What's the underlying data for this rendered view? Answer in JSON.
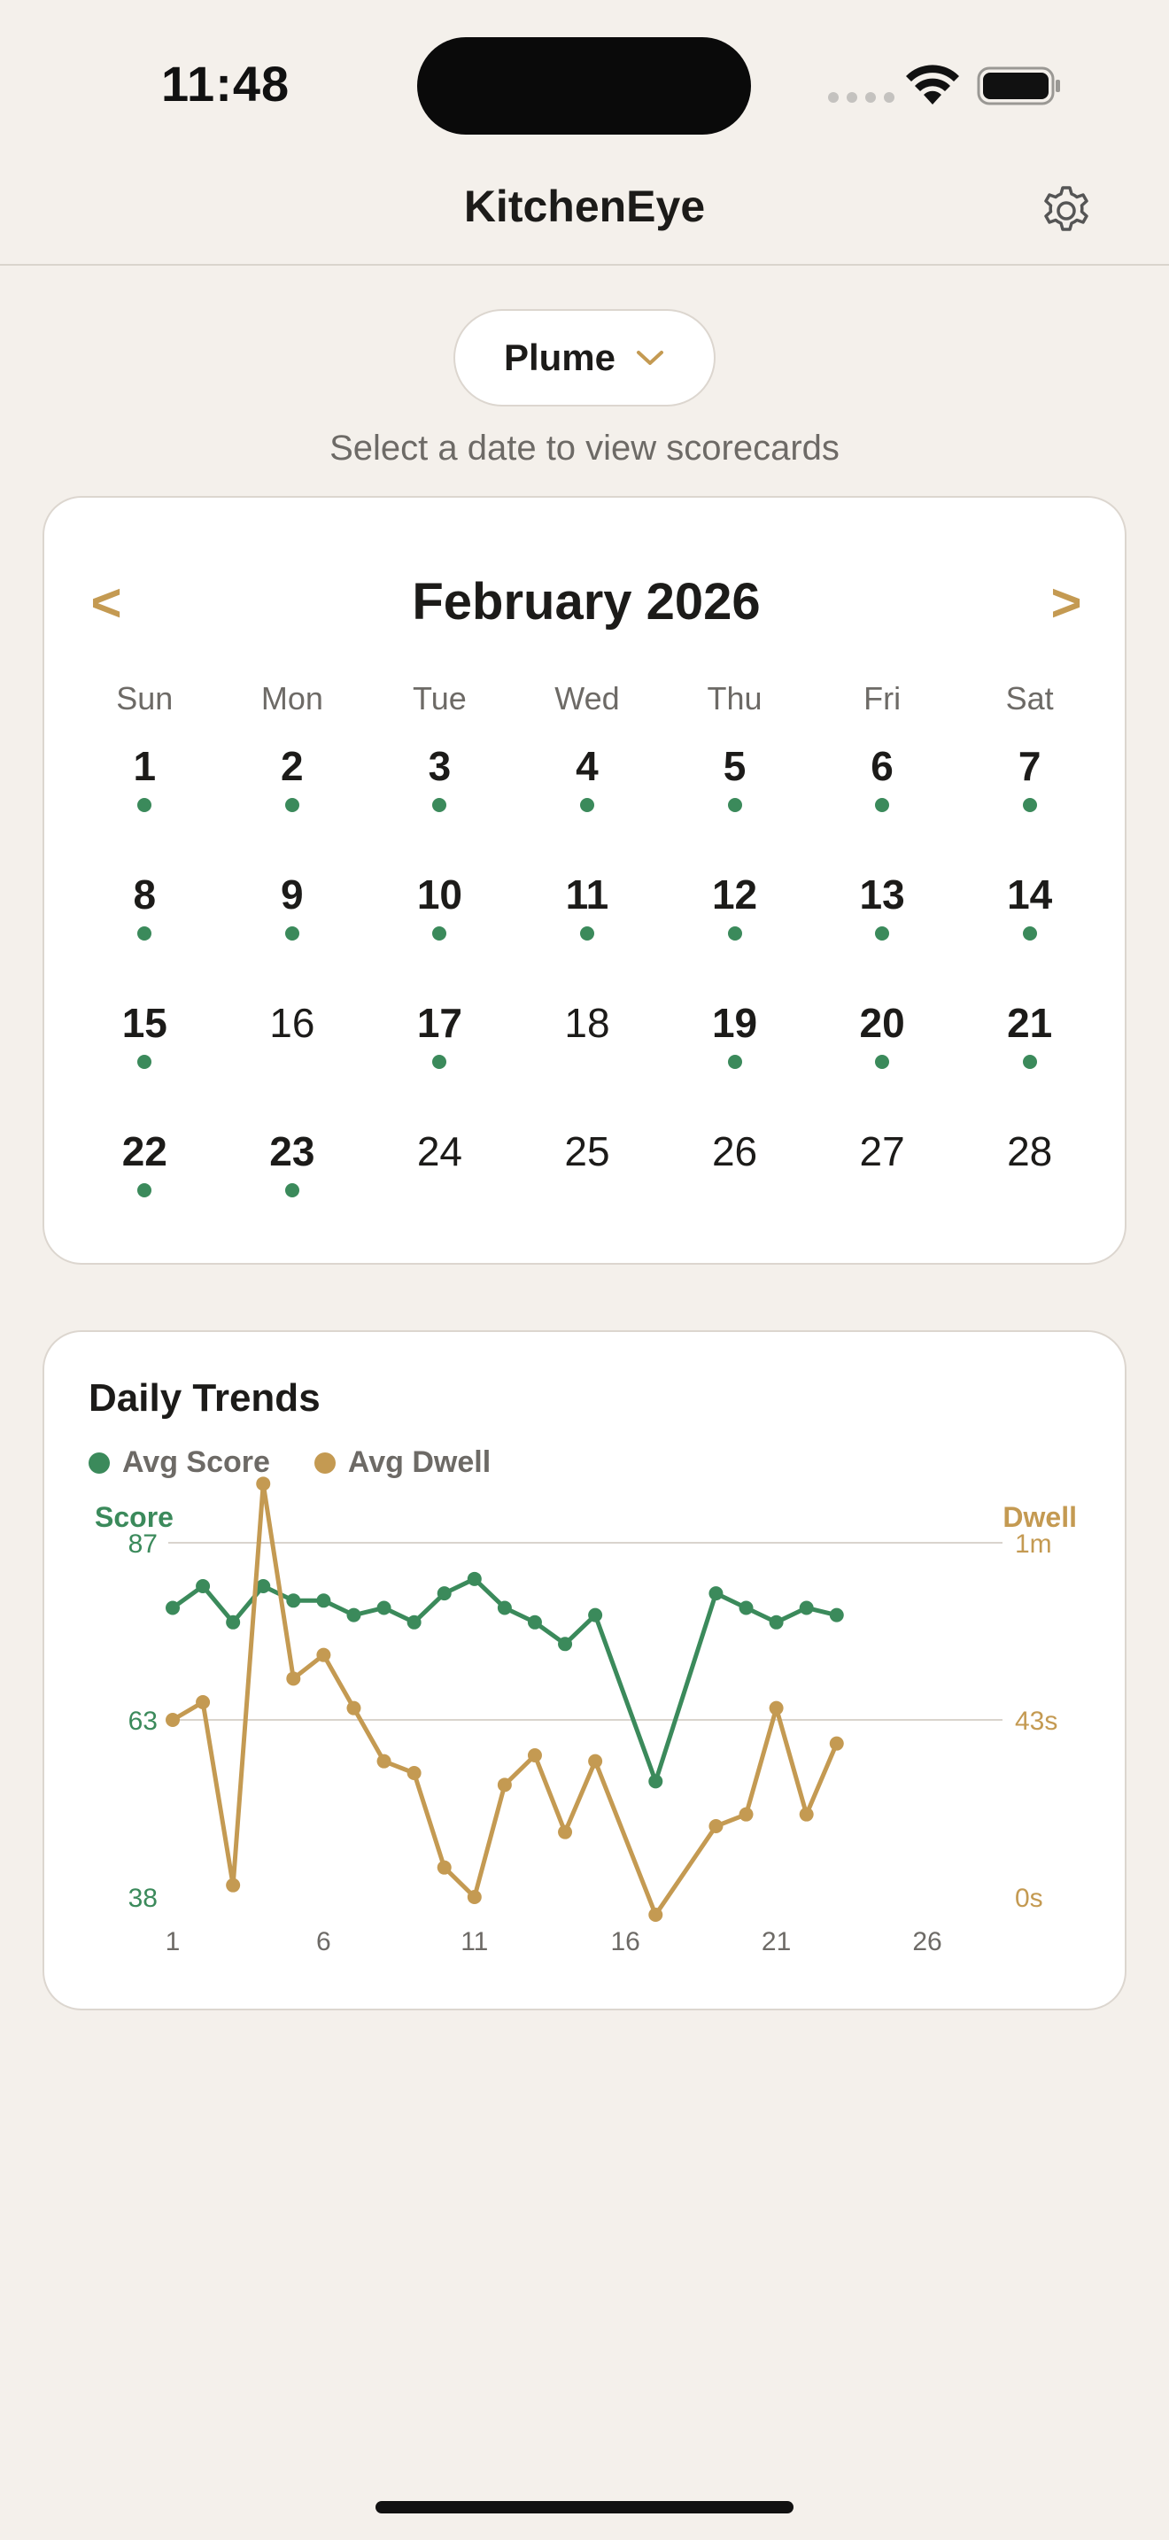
{
  "status": {
    "time": "11:48"
  },
  "header": {
    "title": "KitchenEye",
    "settings_icon": "gear-icon"
  },
  "picker": {
    "location": "Plume",
    "icon": "chevron-down-icon"
  },
  "hint": "Select a date to view scorecards",
  "calendar": {
    "month_label": "February 2026",
    "prev_label": "<",
    "next_label": ">",
    "weekdays": [
      "Sun",
      "Mon",
      "Tue",
      "Wed",
      "Thu",
      "Fri",
      "Sat"
    ],
    "days": [
      {
        "n": "1",
        "has_data": true
      },
      {
        "n": "2",
        "has_data": true
      },
      {
        "n": "3",
        "has_data": true
      },
      {
        "n": "4",
        "has_data": true
      },
      {
        "n": "5",
        "has_data": true
      },
      {
        "n": "6",
        "has_data": true
      },
      {
        "n": "7",
        "has_data": true
      },
      {
        "n": "8",
        "has_data": true
      },
      {
        "n": "9",
        "has_data": true
      },
      {
        "n": "10",
        "has_data": true
      },
      {
        "n": "11",
        "has_data": true
      },
      {
        "n": "12",
        "has_data": true
      },
      {
        "n": "13",
        "has_data": true
      },
      {
        "n": "14",
        "has_data": true
      },
      {
        "n": "15",
        "has_data": true
      },
      {
        "n": "16",
        "has_data": false
      },
      {
        "n": "17",
        "has_data": true
      },
      {
        "n": "18",
        "has_data": false
      },
      {
        "n": "19",
        "has_data": true
      },
      {
        "n": "20",
        "has_data": true
      },
      {
        "n": "21",
        "has_data": true
      },
      {
        "n": "22",
        "has_data": true
      },
      {
        "n": "23",
        "has_data": true
      },
      {
        "n": "24",
        "has_data": false
      },
      {
        "n": "25",
        "has_data": false
      },
      {
        "n": "26",
        "has_data": false
      },
      {
        "n": "27",
        "has_data": false
      },
      {
        "n": "28",
        "has_data": false
      }
    ],
    "dot_color": "#3b8a5b"
  },
  "trends": {
    "title": "Daily Trends",
    "legend": [
      {
        "label": "Avg Score",
        "color": "#3b8a5b"
      },
      {
        "label": "Avg Dwell",
        "color": "#c49a52"
      }
    ]
  },
  "chart_data": {
    "type": "line",
    "left_axis_title": "Score",
    "right_axis_title": "Dwell",
    "left_ticks": [
      "87",
      "63",
      "38"
    ],
    "left_range": [
      38,
      87
    ],
    "right_ticks": [
      "1m",
      "43s",
      "0s"
    ],
    "right_range_seconds": [
      0,
      60
    ],
    "x_ticks": [
      "1",
      "6",
      "11",
      "16",
      "21",
      "26"
    ],
    "x_range": [
      1,
      26
    ],
    "grid": true,
    "series": [
      {
        "name": "Avg Score",
        "axis": "left",
        "color": "#3b8a5b",
        "points": [
          [
            1,
            78
          ],
          [
            2,
            81
          ],
          [
            3,
            76
          ],
          [
            4,
            81
          ],
          [
            5,
            79
          ],
          [
            6,
            79
          ],
          [
            7,
            77
          ],
          [
            8,
            78
          ],
          [
            9,
            76
          ],
          [
            10,
            80
          ],
          [
            11,
            82
          ],
          [
            12,
            78
          ],
          [
            13,
            76
          ],
          [
            14,
            73
          ],
          [
            15,
            77
          ],
          [
            17,
            54
          ],
          [
            19,
            80
          ],
          [
            20,
            78
          ],
          [
            21,
            76
          ],
          [
            22,
            78
          ],
          [
            23,
            77
          ]
        ]
      },
      {
        "name": "Avg Dwell",
        "axis": "right",
        "color": "#c49a52",
        "points": [
          [
            1,
            30
          ],
          [
            2,
            33
          ],
          [
            3,
            2
          ],
          [
            4,
            70
          ],
          [
            5,
            37
          ],
          [
            6,
            41
          ],
          [
            7,
            32
          ],
          [
            8,
            23
          ],
          [
            9,
            21
          ],
          [
            10,
            5
          ],
          [
            11,
            0
          ],
          [
            12,
            19
          ],
          [
            13,
            24
          ],
          [
            14,
            11
          ],
          [
            15,
            23
          ],
          [
            17,
            -3
          ],
          [
            19,
            12
          ],
          [
            20,
            14
          ],
          [
            21,
            32
          ],
          [
            22,
            14
          ],
          [
            23,
            26
          ]
        ]
      }
    ]
  }
}
